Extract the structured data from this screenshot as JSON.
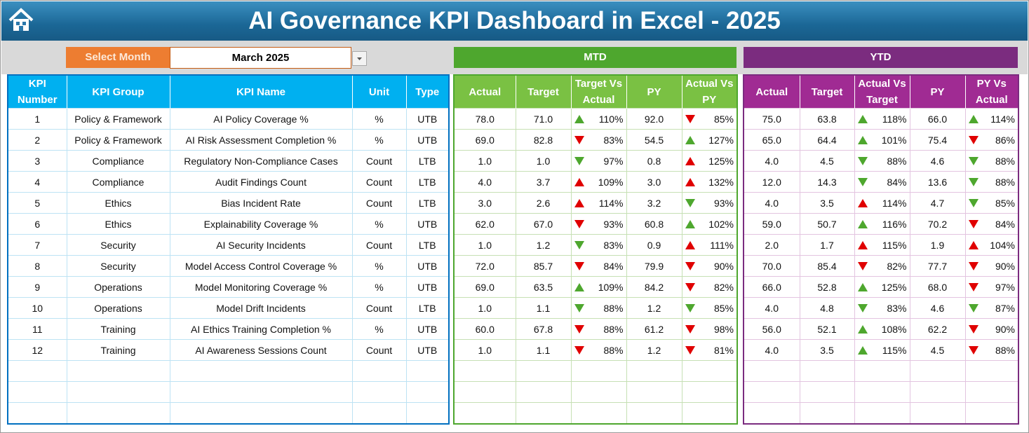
{
  "header": {
    "title": "AI Governance KPI Dashboard in Excel - 2025"
  },
  "month_selector": {
    "label": "Select Month",
    "value": "March 2025"
  },
  "kpi_table": {
    "columns": [
      "KPI Number",
      "KPI Group",
      "KPI Name",
      "Unit",
      "Type"
    ],
    "rows": [
      [
        "1",
        "Policy & Framework",
        "AI Policy Coverage %",
        "%",
        "UTB"
      ],
      [
        "2",
        "Policy & Framework",
        "AI Risk Assessment Completion %",
        "%",
        "UTB"
      ],
      [
        "3",
        "Compliance",
        "Regulatory Non-Compliance Cases",
        "Count",
        "LTB"
      ],
      [
        "4",
        "Compliance",
        "Audit Findings Count",
        "Count",
        "LTB"
      ],
      [
        "5",
        "Ethics",
        "Bias Incident Rate",
        "Count",
        "LTB"
      ],
      [
        "6",
        "Ethics",
        "Explainability Coverage %",
        "%",
        "UTB"
      ],
      [
        "7",
        "Security",
        "AI Security Incidents",
        "Count",
        "LTB"
      ],
      [
        "8",
        "Security",
        "Model Access Control Coverage %",
        "%",
        "UTB"
      ],
      [
        "9",
        "Operations",
        "Model Monitoring Coverage %",
        "%",
        "UTB"
      ],
      [
        "10",
        "Operations",
        "Model Drift Incidents",
        "Count",
        "LTB"
      ],
      [
        "11",
        "Training",
        "AI Ethics Training Completion %",
        "%",
        "UTB"
      ],
      [
        "12",
        "Training",
        "AI Awareness Sessions Count",
        "Count",
        "UTB"
      ]
    ]
  },
  "mtd": {
    "title": "MTD",
    "columns": [
      "Actual",
      "Target",
      "Target Vs Actual",
      "PY",
      "Actual Vs PY"
    ],
    "rows": [
      [
        "78.0",
        "71.0",
        "110%",
        "92.0",
        "85%"
      ],
      [
        "69.0",
        "82.8",
        "83%",
        "54.5",
        "127%"
      ],
      [
        "1.0",
        "1.0",
        "97%",
        "0.8",
        "125%"
      ],
      [
        "4.0",
        "3.7",
        "109%",
        "3.0",
        "132%"
      ],
      [
        "3.0",
        "2.6",
        "114%",
        "3.2",
        "93%"
      ],
      [
        "62.0",
        "67.0",
        "93%",
        "60.8",
        "102%"
      ],
      [
        "1.0",
        "1.2",
        "83%",
        "0.9",
        "111%"
      ],
      [
        "72.0",
        "85.7",
        "84%",
        "79.9",
        "90%"
      ],
      [
        "69.0",
        "63.5",
        "109%",
        "84.2",
        "82%"
      ],
      [
        "1.0",
        "1.1",
        "88%",
        "1.2",
        "85%"
      ],
      [
        "60.0",
        "67.8",
        "88%",
        "61.2",
        "98%"
      ],
      [
        "1.0",
        "1.1",
        "88%",
        "1.2",
        "81%"
      ]
    ]
  },
  "ytd": {
    "title": "YTD",
    "columns": [
      "Actual",
      "Target",
      "Actual Vs Target",
      "PY",
      "PY Vs Actual"
    ],
    "rows": [
      [
        "75.0",
        "63.8",
        "118%",
        "66.0",
        "114%"
      ],
      [
        "65.0",
        "64.4",
        "101%",
        "75.4",
        "86%"
      ],
      [
        "4.0",
        "4.5",
        "88%",
        "4.6",
        "88%"
      ],
      [
        "12.0",
        "14.3",
        "84%",
        "13.6",
        "88%"
      ],
      [
        "4.0",
        "3.5",
        "114%",
        "4.7",
        "85%"
      ],
      [
        "59.0",
        "50.7",
        "116%",
        "70.2",
        "84%"
      ],
      [
        "2.0",
        "1.7",
        "115%",
        "1.9",
        "104%"
      ],
      [
        "70.0",
        "85.4",
        "82%",
        "77.7",
        "90%"
      ],
      [
        "66.0",
        "52.8",
        "125%",
        "68.0",
        "97%"
      ],
      [
        "4.0",
        "4.8",
        "83%",
        "4.6",
        "87%"
      ],
      [
        "56.0",
        "52.1",
        "108%",
        "62.2",
        "90%"
      ],
      [
        "4.0",
        "3.5",
        "115%",
        "4.5",
        "88%"
      ]
    ]
  }
}
